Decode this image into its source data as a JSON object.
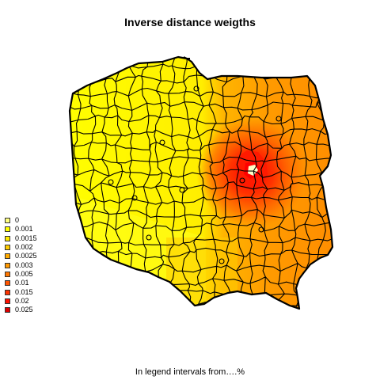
{
  "title": "Inverse distance weigths",
  "caption": "In legend intervals from….%",
  "legend": {
    "items": [
      {
        "label": "0",
        "color": "#ffff80"
      },
      {
        "label": "0.001",
        "color": "#ffff00"
      },
      {
        "label": "0.0015",
        "color": "#ffea00"
      },
      {
        "label": "0.002",
        "color": "#ffcc00"
      },
      {
        "label": "0.0025",
        "color": "#ffaa00"
      },
      {
        "label": "0.003",
        "color": "#ff9900"
      },
      {
        "label": "0.005",
        "color": "#ff7700"
      },
      {
        "label": "0.01",
        "color": "#ff5500"
      },
      {
        "label": "0.015",
        "color": "#ff3300"
      },
      {
        "label": "0.02",
        "color": "#ff1100"
      },
      {
        "label": "0.025",
        "color": "#dd0000"
      }
    ]
  },
  "map": {
    "region": "Poland",
    "border_color": "#000000"
  }
}
